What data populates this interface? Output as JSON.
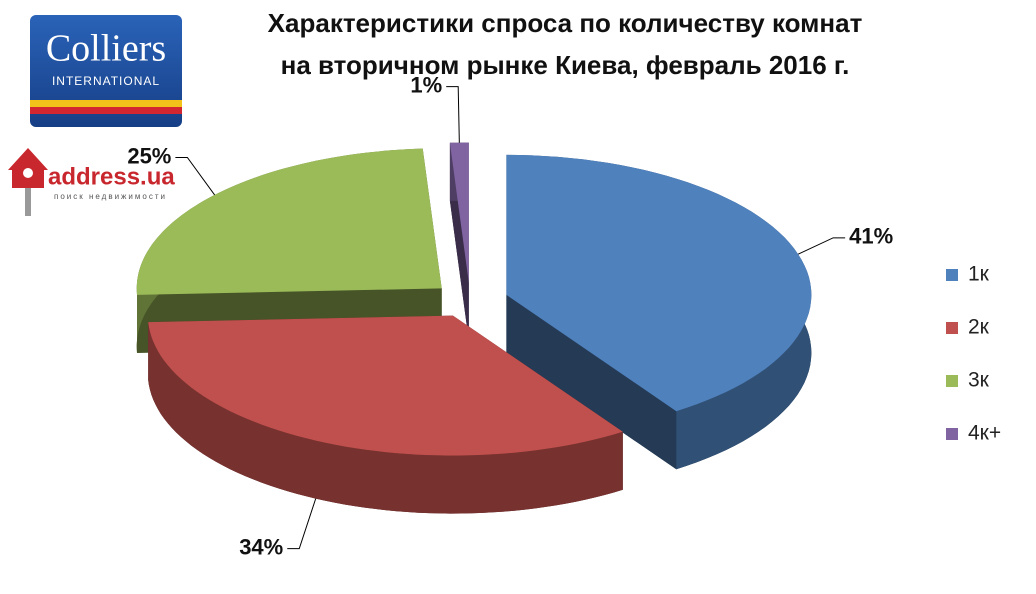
{
  "chart_data": {
    "type": "pie3d",
    "title": [
      "Характеристики спроса по количеству комнат",
      "на вторичном рынке Киева, февраль 2016 г."
    ],
    "categories": [
      "1к",
      "2к",
      "3к",
      "4к+"
    ],
    "values": [
      41,
      34,
      25,
      1
    ],
    "value_labels": [
      "41%",
      "34%",
      "25%",
      "1%"
    ],
    "colors": [
      "#4f81bd",
      "#c0504d",
      "#9bbb59",
      "#8064a2"
    ],
    "legend": "right"
  },
  "logos": {
    "colliers": "Colliers",
    "colliers_sub": "INTERNATIONAL",
    "address": "address.ua",
    "address_sub": "поиск недвижимости"
  }
}
